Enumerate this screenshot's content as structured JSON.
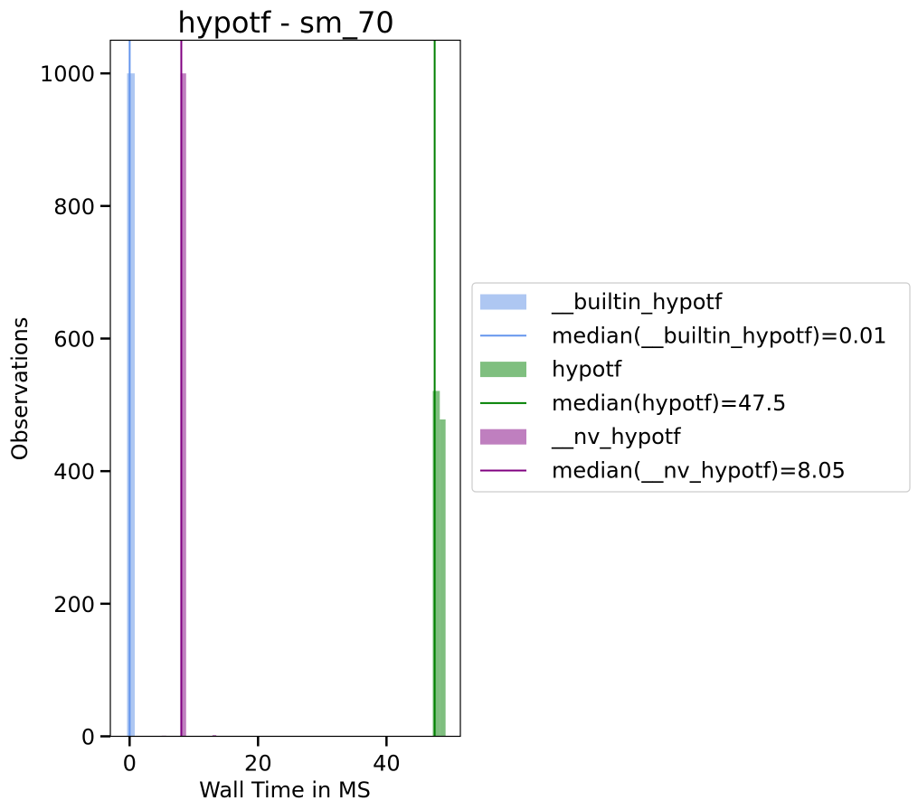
{
  "chart_data": {
    "type": "bar",
    "title": "hypotf - sm_70",
    "xlabel": "Wall Time in MS",
    "ylabel": "Observations",
    "xlim": [
      -3.0,
      51.5
    ],
    "ylim": [
      0,
      1050
    ],
    "xticks": [
      0,
      20,
      40
    ],
    "yticks": [
      0,
      200,
      400,
      600,
      800,
      1000
    ],
    "grid": false,
    "legend_position": "right-outside",
    "series": [
      {
        "name": "__builtin_hypotf",
        "kind": "histogram",
        "color": "#aec7f2",
        "opacity": 1,
        "bins": [
          {
            "x0": -0.4,
            "x1": 0.8,
            "count": 1000
          }
        ]
      },
      {
        "name": "hypotf",
        "kind": "histogram",
        "color": "#008000",
        "opacity": 0.5,
        "bins": [
          {
            "x0": 47.2,
            "x1": 48.3,
            "count": 521
          },
          {
            "x0": 48.3,
            "x1": 49.2,
            "count": 478
          }
        ]
      },
      {
        "name": "__nv_hypotf",
        "kind": "histogram",
        "color": "#800080",
        "opacity": 0.5,
        "bins": [
          {
            "x0": 5.0,
            "x1": 5.7,
            "count": 1
          },
          {
            "x0": 7.9,
            "x1": 8.8,
            "count": 1000
          },
          {
            "x0": 12.9,
            "x1": 13.5,
            "count": 2
          }
        ]
      }
    ],
    "median_lines": [
      {
        "name": "median(__builtin_hypotf)=0.01",
        "value": 0.01,
        "color": "#6495ed"
      },
      {
        "name": "median(hypotf)=47.5",
        "value": 47.5,
        "color": "#008000"
      },
      {
        "name": "median(__nv_hypotf)=8.05",
        "value": 8.05,
        "color": "#800080"
      }
    ],
    "legend": [
      {
        "label": "__builtin_hypotf",
        "kind": "patch",
        "color": "#aec7f2",
        "opacity": 1
      },
      {
        "label": "median(__builtin_hypotf)=0.01",
        "kind": "line",
        "color": "#6495ed"
      },
      {
        "label": "hypotf",
        "kind": "patch",
        "color": "#008000",
        "opacity": 0.5
      },
      {
        "label": "median(hypotf)=47.5",
        "kind": "line",
        "color": "#008000"
      },
      {
        "label": "__nv_hypotf",
        "kind": "patch",
        "color": "#800080",
        "opacity": 0.5
      },
      {
        "label": "median(__nv_hypotf)=8.05",
        "kind": "line",
        "color": "#800080"
      }
    ]
  }
}
